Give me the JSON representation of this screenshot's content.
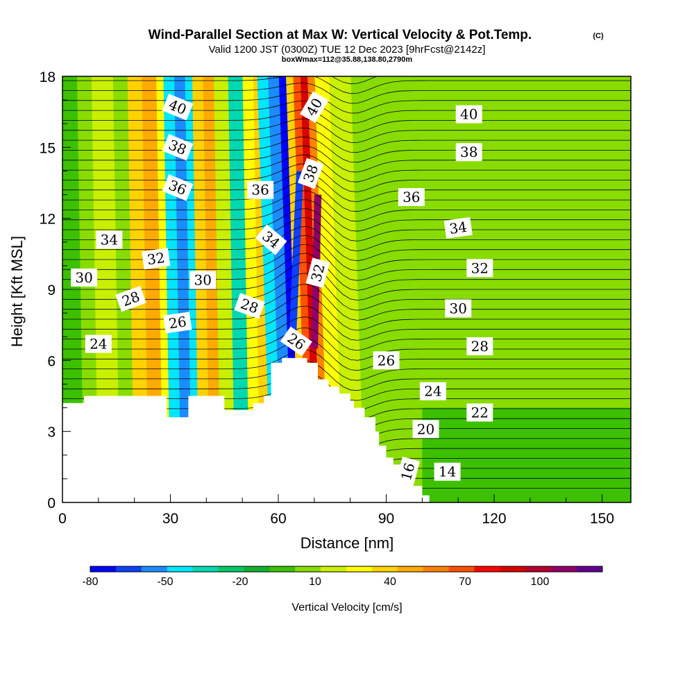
{
  "chart_data": {
    "type": "heatmap",
    "title": "Wind-Parallel Section at Max W: Vertical Velocity & Pot.Temp.",
    "title_mark": "(C)",
    "subtitle": "Valid 1200 JST (0300Z) TUE 12 Dec 2023 [9hrFcst@2142z]",
    "subtitle2": "boxWmax=112@35.88,138.80,2790m",
    "xlabel": "Distance [nm]",
    "ylabel": "Height [Kft MSL]",
    "xlim": [
      0,
      158
    ],
    "ylim": [
      0,
      18
    ],
    "x_ticks": [
      0,
      30,
      60,
      90,
      120,
      150
    ],
    "y_ticks": [
      0,
      3,
      6,
      9,
      12,
      15,
      18
    ],
    "colorbar": {
      "label": "Vertical Velocity [cm/s]",
      "min": -80,
      "max": 125,
      "tick_values": [
        -80,
        -50,
        -20,
        10,
        40,
        70,
        100
      ],
      "colors": [
        "#0000ff",
        "#0d40ff",
        "#1b8cff",
        "#00e6ff",
        "#00d9b0",
        "#00c864",
        "#10b030",
        "#3cc000",
        "#88dc00",
        "#c8f000",
        "#ffff00",
        "#ffd200",
        "#ffaa00",
        "#ff8200",
        "#ff5000",
        "#ff0000",
        "#d80000",
        "#b00030",
        "#900068",
        "#600090"
      ]
    },
    "terrain": [
      [
        0,
        4.2
      ],
      [
        6,
        4.2
      ],
      [
        6,
        4.5
      ],
      [
        29,
        4.5
      ],
      [
        29,
        3.6
      ],
      [
        35,
        3.6
      ],
      [
        35,
        4.5
      ],
      [
        45,
        4.5
      ],
      [
        45,
        3.9
      ],
      [
        53,
        3.9
      ],
      [
        53,
        4.2
      ],
      [
        56,
        4.2
      ],
      [
        56,
        4.5
      ],
      [
        58,
        4.5
      ],
      [
        58,
        5.9
      ],
      [
        61,
        5.9
      ],
      [
        61,
        6.1
      ],
      [
        68,
        6.1
      ],
      [
        68,
        5.9
      ],
      [
        71,
        5.9
      ],
      [
        71,
        5.2
      ],
      [
        74,
        5.2
      ],
      [
        74,
        4.9
      ],
      [
        77,
        4.9
      ],
      [
        77,
        4.6
      ],
      [
        80,
        4.6
      ],
      [
        80,
        4.3
      ],
      [
        81,
        4.3
      ],
      [
        81,
        4.0
      ],
      [
        84,
        4.0
      ],
      [
        84,
        3.6
      ],
      [
        87,
        3.6
      ],
      [
        87,
        3.0
      ],
      [
        88,
        3.0
      ],
      [
        88,
        2.4
      ],
      [
        90,
        2.4
      ],
      [
        90,
        1.9
      ],
      [
        92,
        1.9
      ],
      [
        92,
        1.6
      ],
      [
        94,
        1.6
      ],
      [
        94,
        1.3
      ],
      [
        97,
        1.3
      ],
      [
        97,
        0.7
      ],
      [
        100,
        0.7
      ],
      [
        100,
        0.3
      ],
      [
        102,
        0.3
      ],
      [
        102,
        0.0
      ],
      [
        0,
        0.0
      ]
    ],
    "contour_labels": [
      {
        "text": "40",
        "x": 32,
        "y": 16.7,
        "angle": 22
      },
      {
        "text": "38",
        "x": 32,
        "y": 15.0,
        "angle": 22
      },
      {
        "text": "36",
        "x": 32,
        "y": 13.3,
        "angle": 22
      },
      {
        "text": "34",
        "x": 13,
        "y": 11.1,
        "angle": 0
      },
      {
        "text": "32",
        "x": 26,
        "y": 10.3,
        "angle": -8
      },
      {
        "text": "30",
        "x": 6,
        "y": 9.5,
        "angle": 0
      },
      {
        "text": "28",
        "x": 19,
        "y": 8.6,
        "angle": -20
      },
      {
        "text": "26",
        "x": 32,
        "y": 7.6,
        "angle": -8
      },
      {
        "text": "24",
        "x": 10,
        "y": 6.7,
        "angle": 0
      },
      {
        "text": "30",
        "x": 39,
        "y": 9.4,
        "angle": 0
      },
      {
        "text": "36",
        "x": 55,
        "y": 13.2,
        "angle": 0
      },
      {
        "text": "34",
        "x": 58,
        "y": 11.1,
        "angle": 40
      },
      {
        "text": "28",
        "x": 52,
        "y": 8.3,
        "angle": 20
      },
      {
        "text": "26",
        "x": 65,
        "y": 6.8,
        "angle": 35
      },
      {
        "text": "40",
        "x": 70,
        "y": 16.7,
        "angle": -60
      },
      {
        "text": "38",
        "x": 69,
        "y": 13.9,
        "angle": -70
      },
      {
        "text": "32",
        "x": 71,
        "y": 9.7,
        "angle": -75
      },
      {
        "text": "40",
        "x": 113,
        "y": 16.4,
        "angle": 0
      },
      {
        "text": "38",
        "x": 113,
        "y": 14.8,
        "angle": 0
      },
      {
        "text": "36",
        "x": 97,
        "y": 12.9,
        "angle": 0
      },
      {
        "text": "34",
        "x": 110,
        "y": 11.6,
        "angle": -8
      },
      {
        "text": "32",
        "x": 116,
        "y": 9.9,
        "angle": 0
      },
      {
        "text": "30",
        "x": 110,
        "y": 8.2,
        "angle": 0
      },
      {
        "text": "28",
        "x": 116,
        "y": 6.6,
        "angle": 0
      },
      {
        "text": "26",
        "x": 90,
        "y": 6.0,
        "angle": 0
      },
      {
        "text": "24",
        "x": 103,
        "y": 4.7,
        "angle": 0
      },
      {
        "text": "22",
        "x": 116,
        "y": 3.8,
        "angle": 0
      },
      {
        "text": "20",
        "x": 101,
        "y": 3.1,
        "angle": 0
      },
      {
        "text": "16",
        "x": 96,
        "y": 1.3,
        "angle": -75
      },
      {
        "text": "14",
        "x": 107,
        "y": 1.3,
        "angle": 0
      }
    ]
  }
}
